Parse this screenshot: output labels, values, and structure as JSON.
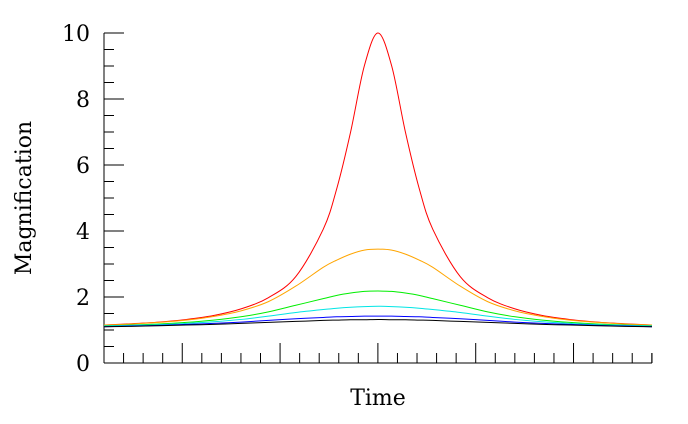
{
  "chart_data": {
    "type": "line",
    "title": "",
    "xlabel": "Time",
    "ylabel": "Magnification",
    "xlim": [
      -1,
      1
    ],
    "ylim": [
      0,
      10
    ],
    "y_ticks": [
      {
        "value": 0,
        "label": "0"
      },
      {
        "value": 2,
        "label": "2"
      },
      {
        "value": 4,
        "label": "4"
      },
      {
        "value": 6,
        "label": "6"
      },
      {
        "value": 8,
        "label": "8"
      },
      {
        "value": 10,
        "label": "10"
      }
    ],
    "y_minor_step": 0.5,
    "x_major_ticks": [
      -0.714,
      -0.357,
      0,
      0.357,
      0.714
    ],
    "x_minor_step": 0.0714,
    "grid": false,
    "legend": "none",
    "x": [
      -1.0,
      -0.9,
      -0.8,
      -0.7,
      -0.6,
      -0.5,
      -0.4,
      -0.3,
      -0.2,
      -0.15,
      -0.1,
      -0.05,
      0.0,
      0.05,
      0.1,
      0.15,
      0.2,
      0.3,
      0.4,
      0.5,
      0.6,
      0.7,
      0.8,
      0.9,
      1.0
    ],
    "series": [
      {
        "color": "#ff0000",
        "values": [
          1.15,
          1.19,
          1.24,
          1.32,
          1.44,
          1.64,
          1.98,
          2.62,
          4.05,
          5.3,
          7.0,
          9.0,
          10.0,
          9.0,
          7.0,
          5.3,
          4.05,
          2.62,
          1.98,
          1.64,
          1.44,
          1.32,
          1.24,
          1.19,
          1.15
        ]
      },
      {
        "color": "#ffa500",
        "values": [
          1.15,
          1.18,
          1.23,
          1.3,
          1.41,
          1.58,
          1.86,
          2.33,
          2.9,
          3.12,
          3.3,
          3.42,
          3.45,
          3.42,
          3.3,
          3.12,
          2.9,
          2.33,
          1.86,
          1.58,
          1.41,
          1.3,
          1.23,
          1.18,
          1.15
        ]
      },
      {
        "color": "#00ee00",
        "values": [
          1.13,
          1.15,
          1.18,
          1.23,
          1.3,
          1.4,
          1.55,
          1.75,
          1.95,
          2.05,
          2.12,
          2.17,
          2.18,
          2.17,
          2.12,
          2.05,
          1.95,
          1.75,
          1.55,
          1.4,
          1.3,
          1.23,
          1.18,
          1.15,
          1.13
        ]
      },
      {
        "color": "#00e5e5",
        "values": [
          1.12,
          1.14,
          1.16,
          1.2,
          1.25,
          1.32,
          1.42,
          1.53,
          1.62,
          1.66,
          1.69,
          1.71,
          1.72,
          1.71,
          1.69,
          1.66,
          1.62,
          1.53,
          1.42,
          1.32,
          1.25,
          1.2,
          1.16,
          1.14,
          1.12
        ]
      },
      {
        "color": "#0000ff",
        "values": [
          1.1,
          1.12,
          1.14,
          1.17,
          1.2,
          1.24,
          1.29,
          1.34,
          1.38,
          1.4,
          1.41,
          1.42,
          1.42,
          1.42,
          1.41,
          1.4,
          1.38,
          1.34,
          1.29,
          1.24,
          1.2,
          1.17,
          1.14,
          1.12,
          1.1
        ]
      },
      {
        "color": "#000000",
        "values": [
          1.1,
          1.11,
          1.13,
          1.15,
          1.17,
          1.2,
          1.23,
          1.26,
          1.29,
          1.3,
          1.31,
          1.31,
          1.32,
          1.31,
          1.31,
          1.3,
          1.29,
          1.26,
          1.23,
          1.2,
          1.17,
          1.15,
          1.13,
          1.11,
          1.1
        ]
      }
    ]
  }
}
